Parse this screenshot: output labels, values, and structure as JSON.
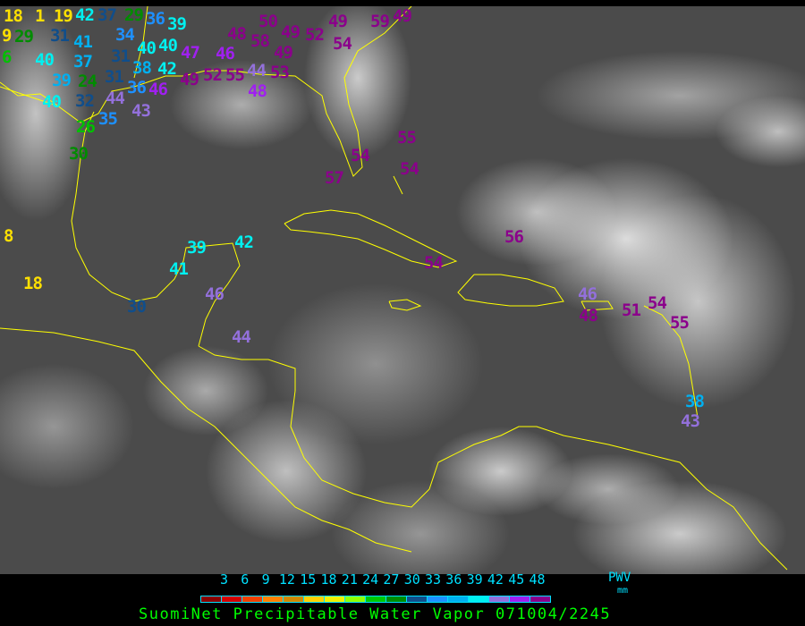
{
  "title": "SuomiNet Precipitable Water Vapor 071004/2245",
  "legend": {
    "unit_top": "PWV",
    "unit_bottom": "mm",
    "ticks": [
      "3",
      "6",
      "9",
      "12",
      "15",
      "18",
      "21",
      "24",
      "27",
      "30",
      "33",
      "36",
      "39",
      "42",
      "45",
      "48"
    ],
    "colors": [
      "#8b0000",
      "#d40000",
      "#f04000",
      "#ff8000",
      "#d08800",
      "#ffd000",
      "#f0f000",
      "#90ff00",
      "#00c800",
      "#008c00",
      "#104e8b",
      "#1e90ff",
      "#00b0f0",
      "#00f0f0",
      "#9370db",
      "#a020f0",
      "#8b008b"
    ]
  },
  "palette": {
    "yellow": "#ffe000",
    "green": "#00c000",
    "dkgreen": "#008c00",
    "dkblue": "#104e8b",
    "blue": "#1e90ff",
    "ltblue": "#00b0f0",
    "cyan": "#00f0f0",
    "lavender": "#9370db",
    "purple": "#a020f0",
    "magenta": "#8b008b",
    "coast": "#ffff00"
  },
  "stations": [
    {
      "v": "18",
      "c": "yellow"
    },
    {
      "v": "1 19",
      "c": "yellow"
    },
    {
      "v": "9",
      "c": "yellow"
    },
    {
      "v": "29",
      "c": "dkgreen"
    },
    {
      "v": "6",
      "c": "green"
    },
    {
      "v": "42",
      "c": "cyan"
    },
    {
      "v": "37",
      "c": "dkblue"
    },
    {
      "v": "29",
      "c": "dkgreen"
    },
    {
      "v": "36",
      "c": "blue"
    },
    {
      "v": "39",
      "c": "cyan"
    },
    {
      "v": "31",
      "c": "dkblue"
    },
    {
      "v": "41",
      "c": "ltblue"
    },
    {
      "v": "37",
      "c": "ltblue"
    },
    {
      "v": "34",
      "c": "blue"
    },
    {
      "v": "31",
      "c": "dkblue"
    },
    {
      "v": "40",
      "c": "cyan"
    },
    {
      "v": "40",
      "c": "cyan"
    },
    {
      "v": "47",
      "c": "purple"
    },
    {
      "v": "40",
      "c": "cyan"
    },
    {
      "v": "39",
      "c": "ltblue"
    },
    {
      "v": "24",
      "c": "dkgreen"
    },
    {
      "v": "31",
      "c": "dkblue"
    },
    {
      "v": "38",
      "c": "ltblue"
    },
    {
      "v": "42",
      "c": "cyan"
    },
    {
      "v": "36",
      "c": "blue"
    },
    {
      "v": "46",
      "c": "purple"
    },
    {
      "v": "44",
      "c": "lavender"
    },
    {
      "v": "43",
      "c": "lavender"
    },
    {
      "v": "40",
      "c": "cyan"
    },
    {
      "v": "32",
      "c": "dkblue"
    },
    {
      "v": "35",
      "c": "blue"
    },
    {
      "v": "26",
      "c": "green"
    },
    {
      "v": "30",
      "c": "dkgreen"
    },
    {
      "v": "49",
      "c": "magenta"
    },
    {
      "v": "52",
      "c": "magenta"
    },
    {
      "v": "55",
      "c": "magenta"
    },
    {
      "v": "46",
      "c": "purple"
    },
    {
      "v": "44",
      "c": "lavender"
    },
    {
      "v": "48",
      "c": "purple"
    },
    {
      "v": "48",
      "c": "magenta"
    },
    {
      "v": "50",
      "c": "magenta"
    },
    {
      "v": "58",
      "c": "magenta"
    },
    {
      "v": "49",
      "c": "magenta"
    },
    {
      "v": "49",
      "c": "magenta"
    },
    {
      "v": "53",
      "c": "magenta"
    },
    {
      "v": "52",
      "c": "magenta"
    },
    {
      "v": "49",
      "c": "magenta"
    },
    {
      "v": "54",
      "c": "magenta"
    },
    {
      "v": "59",
      "c": "magenta"
    },
    {
      "v": "49",
      "c": "magenta"
    },
    {
      "v": "55",
      "c": "magenta"
    },
    {
      "v": "54",
      "c": "magenta"
    },
    {
      "v": "54",
      "c": "magenta"
    },
    {
      "v": "57",
      "c": "magenta"
    },
    {
      "v": "56",
      "c": "magenta"
    },
    {
      "v": "54",
      "c": "magenta"
    },
    {
      "v": "46",
      "c": "lavender"
    },
    {
      "v": "48",
      "c": "magenta"
    },
    {
      "v": "51",
      "c": "magenta"
    },
    {
      "v": "54",
      "c": "magenta"
    },
    {
      "v": "55",
      "c": "magenta"
    },
    {
      "v": "38",
      "c": "ltblue"
    },
    {
      "v": "43",
      "c": "lavender"
    },
    {
      "v": "39",
      "c": "cyan"
    },
    {
      "v": "42",
      "c": "cyan"
    },
    {
      "v": "41",
      "c": "cyan"
    },
    {
      "v": "46",
      "c": "lavender"
    },
    {
      "v": "30",
      "c": "dkblue"
    },
    {
      "v": "44",
      "c": "lavender"
    },
    {
      "v": "8",
      "c": "yellow"
    },
    {
      "v": "18",
      "c": "yellow"
    }
  ]
}
